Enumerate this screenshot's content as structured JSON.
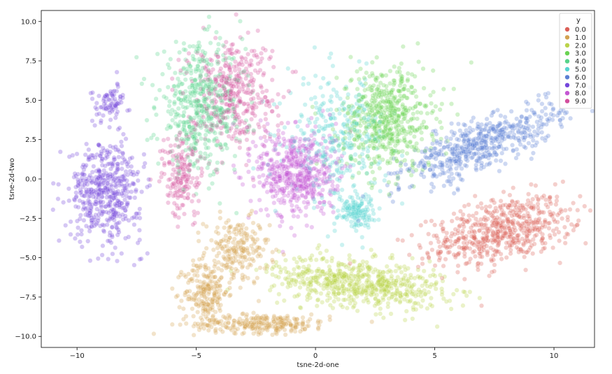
{
  "chart_data": {
    "type": "scatter",
    "title": "",
    "xlabel": "tsne-2d-one",
    "ylabel": "tsne-2d-two",
    "xlim": [
      -11.5,
      11.7
    ],
    "ylim": [
      -10.7,
      10.7
    ],
    "xticks": [
      -10,
      -5,
      0,
      5,
      10
    ],
    "xtick_labels": [
      "−10",
      "−5",
      "0",
      "5",
      "10"
    ],
    "yticks": [
      -10.0,
      -7.5,
      -5.0,
      -2.5,
      0.0,
      2.5,
      5.0,
      7.5,
      10.0
    ],
    "ytick_labels": [
      "−10.0",
      "−7.5",
      "−5.0",
      "−2.5",
      "0.0",
      "2.5",
      "5.0",
      "7.5",
      "10.0"
    ],
    "grid": false,
    "legend": {
      "title": "y",
      "position": "top-right",
      "entries": [
        "0.0",
        "1.0",
        "2.0",
        "3.0",
        "4.0",
        "5.0",
        "6.0",
        "7.0",
        "8.0",
        "9.0"
      ]
    },
    "series": [
      {
        "name": "0.0",
        "color": "#db5f57",
        "clusters": [
          {
            "cx": 7.8,
            "cy": -3.3,
            "sx": 2.2,
            "sy": 1.3,
            "angle": 22,
            "n": 600
          }
        ]
      },
      {
        "name": "1.0",
        "color": "#d3a250",
        "clusters": [
          {
            "cx": -3.3,
            "cy": -4.6,
            "sx": 0.9,
            "sy": 1.4,
            "angle": 0,
            "n": 220
          },
          {
            "cx": -4.6,
            "cy": -7.2,
            "sx": 0.6,
            "sy": 1.3,
            "angle": 0,
            "n": 200
          },
          {
            "cx": -2.2,
            "cy": -9.2,
            "sx": 1.9,
            "sy": 0.4,
            "angle": 0,
            "n": 260
          }
        ]
      },
      {
        "name": "2.0",
        "color": "#bbd34a",
        "clusters": [
          {
            "cx": 1.8,
            "cy": -6.6,
            "sx": 2.4,
            "sy": 1.0,
            "angle": -10,
            "n": 650
          }
        ]
      },
      {
        "name": "3.0",
        "color": "#6ad352",
        "clusters": [
          {
            "cx": 3.0,
            "cy": 3.8,
            "sx": 1.3,
            "sy": 2.2,
            "angle": 0,
            "n": 600
          }
        ]
      },
      {
        "name": "4.0",
        "color": "#57d38a",
        "clusters": [
          {
            "cx": -4.8,
            "cy": 4.5,
            "sx": 1.2,
            "sy": 2.6,
            "angle": 0,
            "n": 520
          }
        ]
      },
      {
        "name": "5.0",
        "color": "#57d3d1",
        "clusters": [
          {
            "cx": 0.9,
            "cy": 2.5,
            "sx": 1.4,
            "sy": 2.6,
            "angle": 0,
            "n": 320
          },
          {
            "cx": 1.7,
            "cy": -2.0,
            "sx": 0.5,
            "sy": 0.7,
            "angle": 0,
            "n": 140
          }
        ]
      },
      {
        "name": "6.0",
        "color": "#5b7fd3",
        "clusters": [
          {
            "cx": 7.0,
            "cy": 2.2,
            "sx": 2.6,
            "sy": 0.9,
            "angle": 35,
            "n": 550
          }
        ]
      },
      {
        "name": "7.0",
        "color": "#7446db",
        "clusters": [
          {
            "cx": -8.8,
            "cy": -0.8,
            "sx": 1.0,
            "sy": 2.1,
            "angle": 0,
            "n": 500
          },
          {
            "cx": -8.6,
            "cy": 4.8,
            "sx": 0.5,
            "sy": 0.8,
            "angle": 0,
            "n": 80
          }
        ]
      },
      {
        "name": "8.0",
        "color": "#c457d3",
        "clusters": [
          {
            "cx": -0.8,
            "cy": 0.4,
            "sx": 1.1,
            "sy": 1.9,
            "angle": 0,
            "n": 560
          }
        ]
      },
      {
        "name": "9.0",
        "color": "#d34e9d",
        "clusters": [
          {
            "cx": -3.5,
            "cy": 5.6,
            "sx": 1.2,
            "sy": 2.2,
            "angle": 0,
            "n": 400
          },
          {
            "cx": -5.6,
            "cy": 0.2,
            "sx": 0.6,
            "sy": 1.8,
            "angle": 0,
            "n": 180
          }
        ]
      }
    ]
  }
}
